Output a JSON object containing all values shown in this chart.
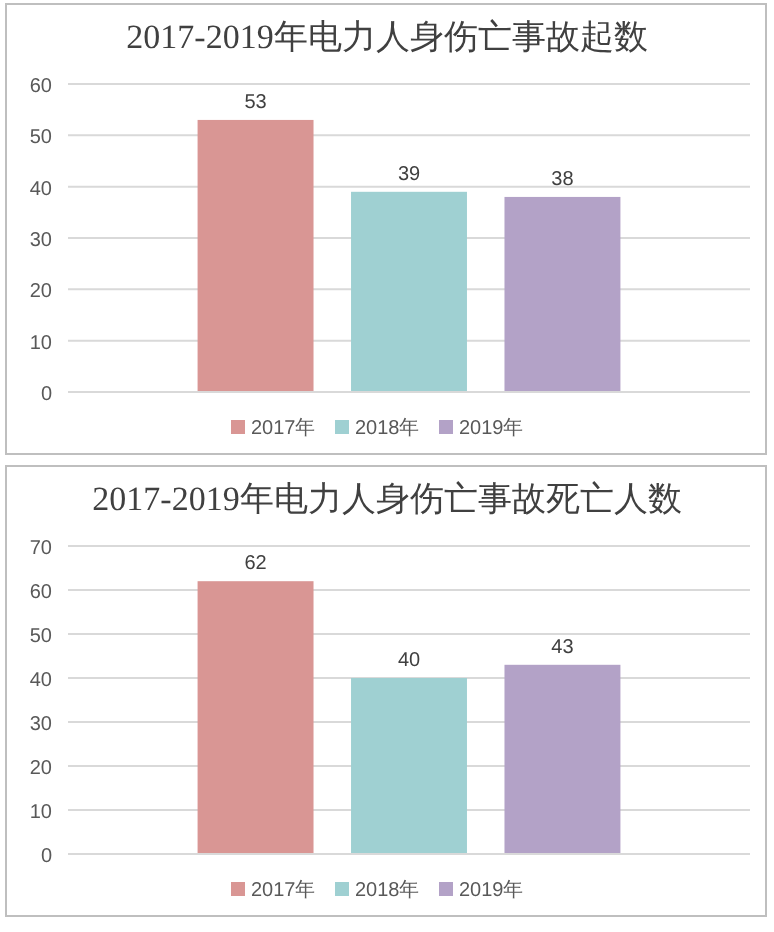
{
  "chart_data": [
    {
      "type": "bar",
      "title": "2017-2019年电力人身伤亡事故起数",
      "categories": [
        null
      ],
      "series": [
        {
          "name": "2017年",
          "color": "#d99694",
          "values": [
            53
          ]
        },
        {
          "name": "2018年",
          "color": "#9fd0d2",
          "values": [
            39
          ]
        },
        {
          "name": "2019年",
          "color": "#b3a2c7",
          "values": [
            38
          ]
        }
      ],
      "ylim": [
        0,
        60
      ],
      "yticks": [
        0,
        10,
        20,
        30,
        40,
        50,
        60
      ],
      "grid": "y",
      "legend": "bottom",
      "data_labels": true
    },
    {
      "type": "bar",
      "title": "2017-2019年电力人身伤亡事故死亡人数",
      "categories": [
        null
      ],
      "series": [
        {
          "name": "2017年",
          "color": "#d99694",
          "values": [
            62
          ]
        },
        {
          "name": "2018年",
          "color": "#9fd0d2",
          "values": [
            40
          ]
        },
        {
          "name": "2019年",
          "color": "#b3a2c7",
          "values": [
            43
          ]
        }
      ],
      "ylim": [
        0,
        70
      ],
      "yticks": [
        0,
        10,
        20,
        30,
        40,
        50,
        60,
        70
      ],
      "grid": "y",
      "legend": "bottom",
      "data_labels": true
    }
  ]
}
